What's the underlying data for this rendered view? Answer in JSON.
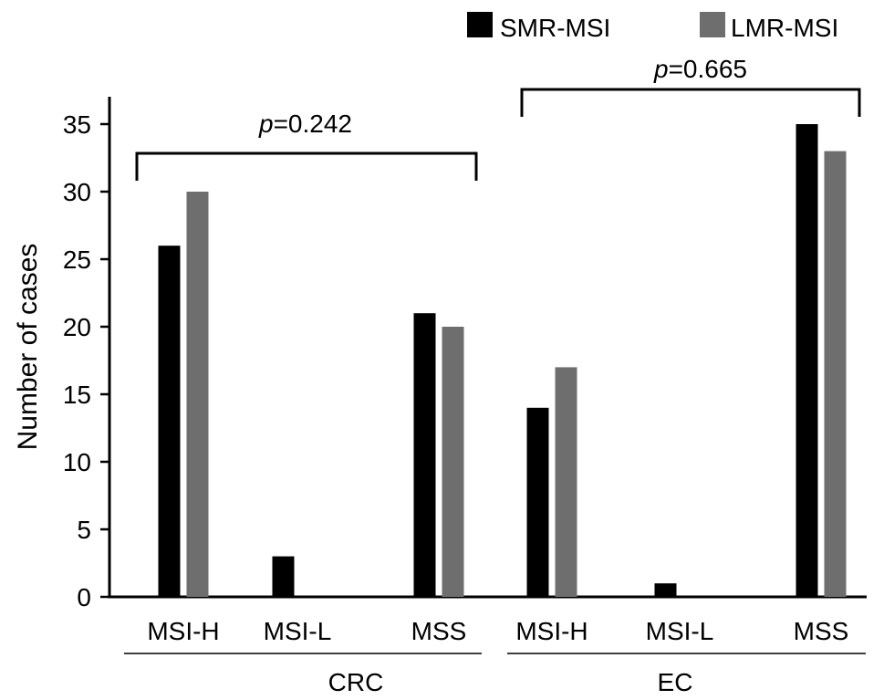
{
  "chart_data": {
    "type": "bar",
    "ylabel": "Number of cases",
    "ylim": [
      0,
      35
    ],
    "yticks": [
      0,
      5,
      10,
      15,
      20,
      25,
      30,
      35
    ],
    "groups": [
      {
        "label": "CRC",
        "p_label_prefix": "p",
        "p_label_value": "=0.242",
        "categories": [
          "MSI-H",
          "MSI-L",
          "MSS"
        ]
      },
      {
        "label": "EC",
        "p_label_prefix": "p",
        "p_label_value": "=0.665",
        "categories": [
          "MSI-H",
          "MSI-L",
          "MSS"
        ]
      }
    ],
    "series": [
      {
        "name": "SMR-MSI",
        "color": "#000000",
        "values": [
          26,
          3,
          21,
          14,
          1,
          35
        ]
      },
      {
        "name": "LMR-MSI",
        "color": "#6e6e6e",
        "values": [
          30,
          0,
          20,
          17,
          0,
          33
        ]
      }
    ],
    "legend_position": "top-right",
    "grid": false
  }
}
